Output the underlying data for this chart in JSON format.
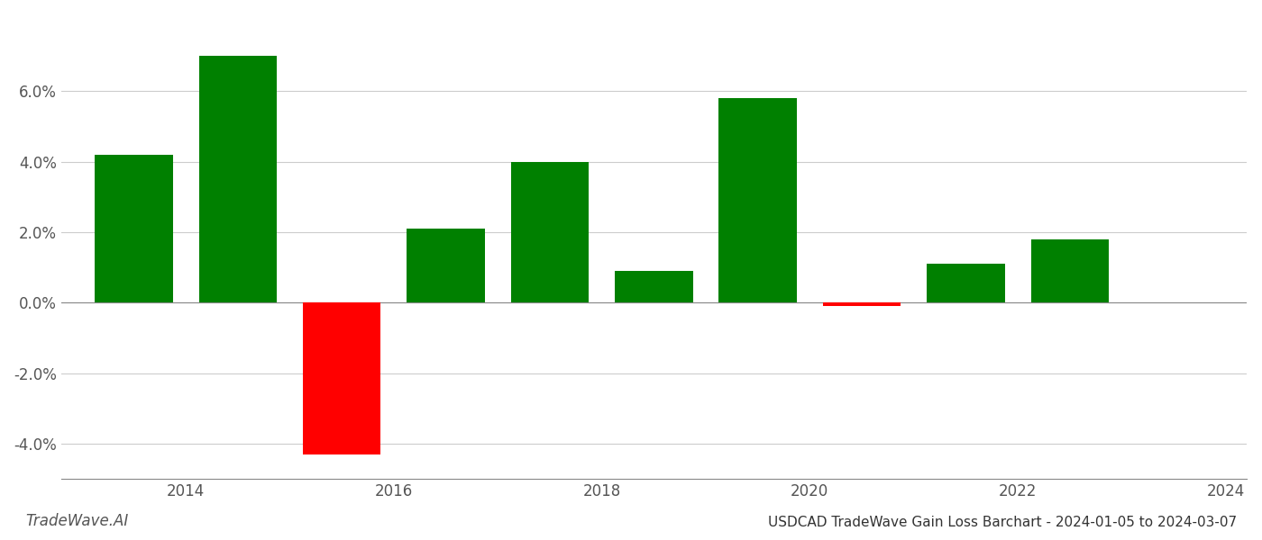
{
  "years": [
    2013.5,
    2014.5,
    2015.5,
    2016.5,
    2017.5,
    2018.5,
    2019.5,
    2020.5,
    2021.5,
    2022.5
  ],
  "values": [
    0.042,
    0.07,
    -0.043,
    0.021,
    0.04,
    0.009,
    0.058,
    -0.001,
    0.011,
    0.018
  ],
  "colors": [
    "#008000",
    "#008000",
    "#ff0000",
    "#008000",
    "#008000",
    "#008000",
    "#008000",
    "#ff0000",
    "#008000",
    "#008000"
  ],
  "title": "USDCAD TradeWave Gain Loss Barchart - 2024-01-05 to 2024-03-07",
  "watermark": "TradeWave.AI",
  "ylim": [
    -0.05,
    0.082
  ],
  "yticks": [
    -0.04,
    -0.02,
    0.0,
    0.02,
    0.04,
    0.06
  ],
  "xtick_positions": [
    2014,
    2016,
    2018,
    2020,
    2022,
    2024
  ],
  "xtick_labels": [
    "2014",
    "2016",
    "2018",
    "2020",
    "2022",
    "2024"
  ],
  "xlim": [
    2012.8,
    2024.2
  ],
  "background_color": "#ffffff",
  "grid_color": "#cccccc",
  "bar_width": 0.75
}
